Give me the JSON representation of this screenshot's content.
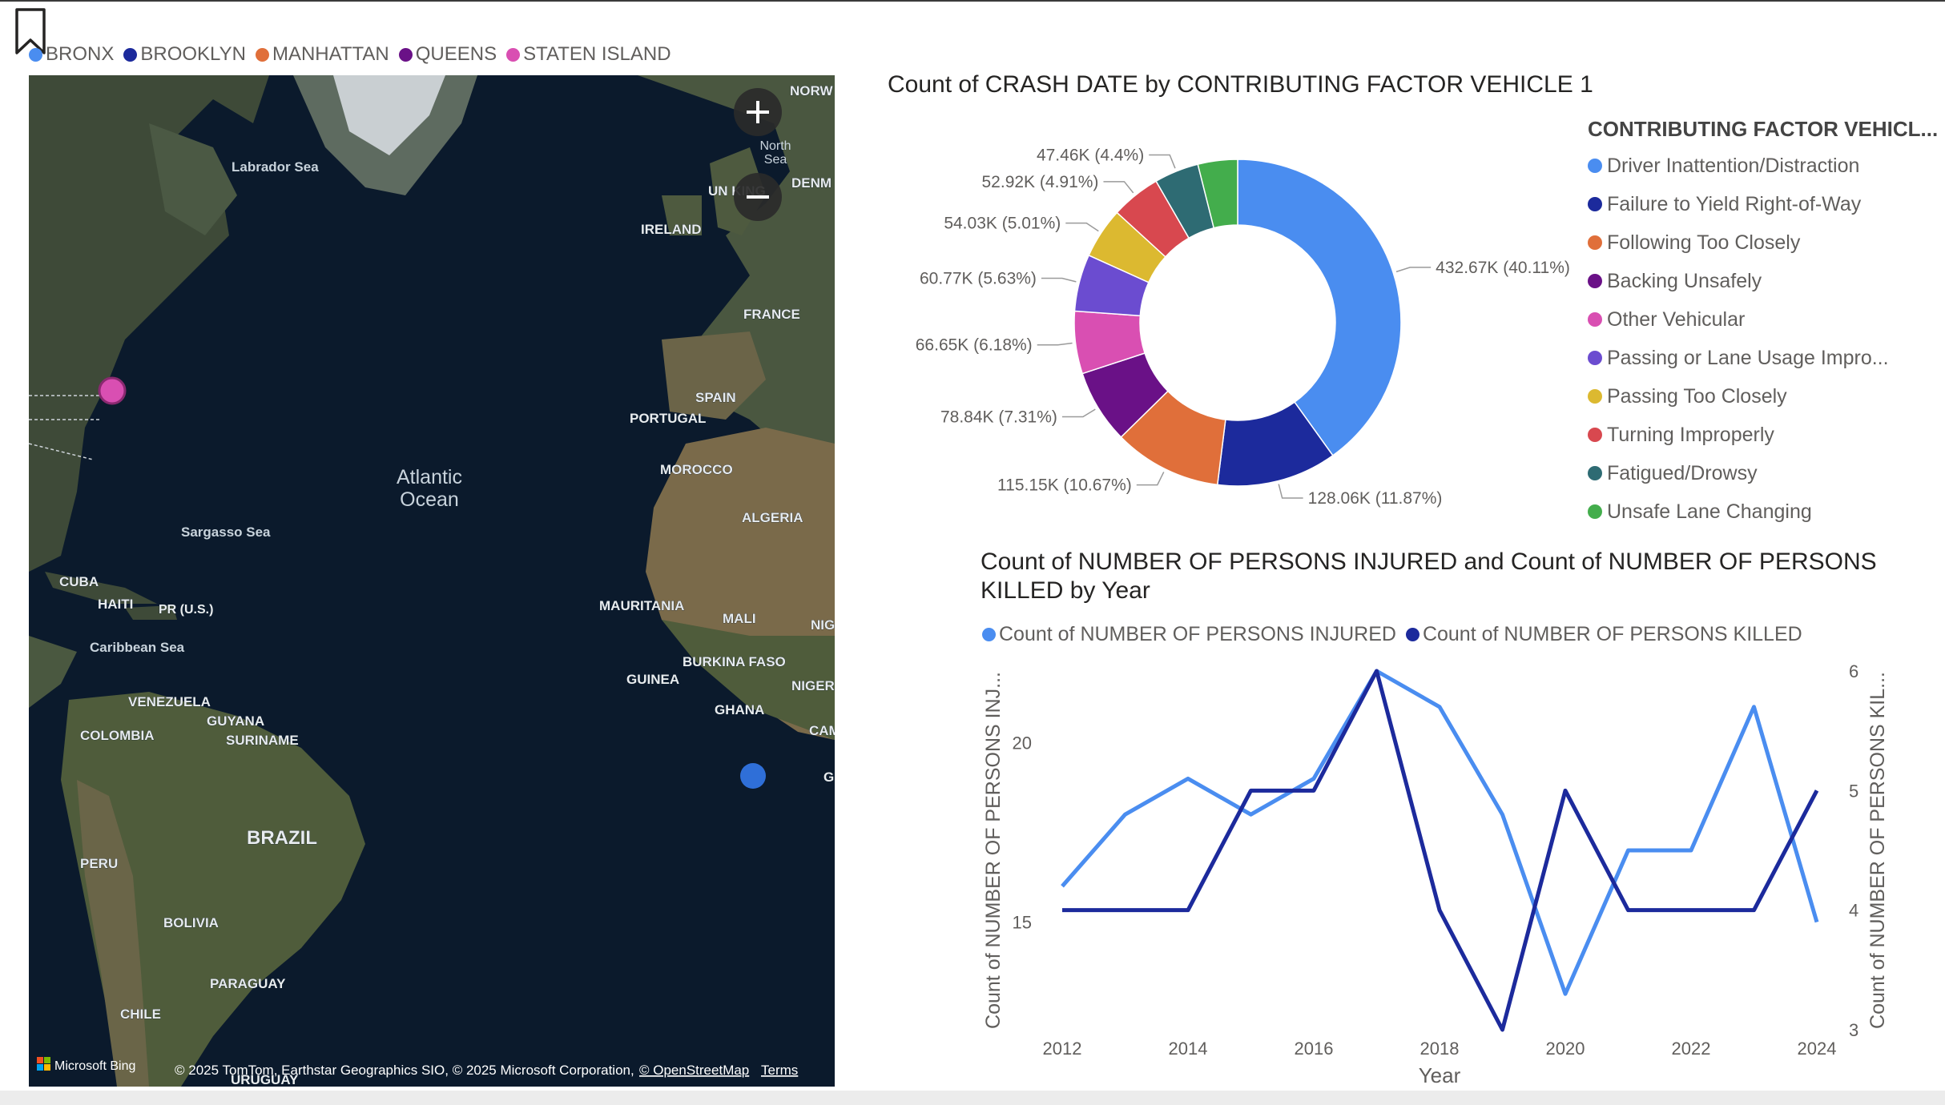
{
  "map_legend": [
    {
      "label": "BRONX",
      "color": "#4a8df0"
    },
    {
      "label": "BROOKLYN",
      "color": "#1c2a9c"
    },
    {
      "label": "MANHATTAN",
      "color": "#e06f3a"
    },
    {
      "label": "QUEENS",
      "color": "#6a1187"
    },
    {
      "label": "STATEN ISLAND",
      "color": "#d94fb2"
    }
  ],
  "map": {
    "labels": {
      "north_sea": "North Sea",
      "norway": "NORW",
      "denmark": "DENM",
      "uk": "UN KING",
      "ireland": "IRELAND",
      "france": "FRANCE",
      "spain": "SPAIN",
      "portugal": "PORTUGAL",
      "morocco": "MOROCCO",
      "algeria": "ALGERIA",
      "mauritania": "MAURITANIA",
      "mali": "MALI",
      "burkina": "BURKINA FASO",
      "niger": "NIGER",
      "nig": "NIG",
      "guinea": "GUINEA",
      "ghana": "GHANA",
      "cam": "CAM",
      "g": "G",
      "labrador": "Labrador Sea",
      "atlantic": "Atlantic Ocean",
      "sargasso": "Sargasso Sea",
      "cuba": "CUBA",
      "haiti": "HAITI",
      "pr": "PR (U.S.)",
      "caribbean": "Caribbean Sea",
      "venezuela": "VENEZUELA",
      "guyana": "GUYANA",
      "suriname": "SURINAME",
      "colombia": "COLOMBIA",
      "brazil": "BRAZIL",
      "peru": "PERU",
      "bolivia": "BOLIVIA",
      "paraguay": "PARAGUAY",
      "chile": "CHILE",
      "uruguay": "URUGUAY"
    },
    "zoom_in_icon": "plus-icon",
    "zoom_out_icon": "minus-icon",
    "provider": "Microsoft Bing",
    "attribution": "© 2025 TomTom, Earthstar Geographics SIO, © 2025 Microsoft Corporation,",
    "osm_link": "© OpenStreetMap",
    "terms_link": "Terms",
    "colors": {
      "ocean": "#0b1a2c",
      "land": "#3e4a38"
    }
  },
  "donut": {
    "title": "Count of CRASH DATE by CONTRIBUTING FACTOR VEHICLE 1",
    "legend_title": "CONTRIBUTING FACTOR VEHICL...",
    "chart_data": {
      "type": "pie",
      "subtype": "donut",
      "slices": [
        {
          "name": "Driver Inattention/Distraction",
          "value": 432.67,
          "label": "432.67K (40.11%)",
          "color": "#4a8df0"
        },
        {
          "name": "Failure to Yield Right-of-Way",
          "value": 128.06,
          "label": "128.06K (11.87%)",
          "color": "#1c2a9c"
        },
        {
          "name": "Following Too Closely",
          "value": 115.15,
          "label": "115.15K (10.67%)",
          "color": "#e06f3a"
        },
        {
          "name": "Backing Unsafely",
          "value": 78.84,
          "label": "78.84K (7.31%)",
          "color": "#6a1187"
        },
        {
          "name": "Other Vehicular",
          "value": 66.65,
          "label": "66.65K (6.18%)",
          "color": "#d94fb2"
        },
        {
          "name": "Passing or Lane Usage Impro...",
          "value": 60.77,
          "label": "60.77K (5.63%)",
          "color": "#6b4cd0"
        },
        {
          "name": "Passing Too Closely",
          "value": 54.03,
          "label": "54.03K (5.01%)",
          "color": "#dcb930"
        },
        {
          "name": "Turning Improperly",
          "value": 52.92,
          "label": "52.92K (4.91%)",
          "color": "#d8484f"
        },
        {
          "name": "Fatigued/Drowsy",
          "value": 47.46,
          "label": "47.46K (4.4%)",
          "color": "#2e6b73"
        },
        {
          "name": "Unsafe Lane Changing",
          "value": 42.3,
          "label": "",
          "color": "#43ad4c"
        }
      ]
    }
  },
  "line": {
    "title_line1": "Count of NUMBER OF PERSONS INJURED and Count of NUMBER OF PERSONS",
    "title_line2": "KILLED by Year",
    "chart_data": {
      "type": "line",
      "xlabel": "Year",
      "ylabel_left": "Count of NUMBER OF PERSONS INJ...",
      "ylabel_right": "Count of NUMBER OF PERSONS KIL...",
      "x": [
        2012,
        2013,
        2014,
        2015,
        2016,
        2017,
        2018,
        2019,
        2020,
        2021,
        2022,
        2023,
        2024
      ],
      "x_ticks": [
        "2012",
        "2014",
        "2016",
        "2018",
        "2020",
        "2022",
        "2024"
      ],
      "y_left_range": [
        12,
        22
      ],
      "y_left_ticks": [
        "15",
        "20"
      ],
      "y_right_range": [
        3,
        6
      ],
      "y_right_ticks": [
        "3",
        "4",
        "5",
        "6"
      ],
      "series": [
        {
          "name": "Count of NUMBER OF PERSONS INJURED",
          "axis": "left",
          "color": "#4a8df0",
          "values": [
            16,
            18,
            19,
            18,
            19,
            22,
            21,
            18,
            13,
            17,
            17,
            21,
            15
          ]
        },
        {
          "name": "Count of NUMBER OF PERSONS KILLED",
          "axis": "right",
          "color": "#1c2a9c",
          "values": [
            4,
            4,
            4,
            5,
            5,
            6,
            4,
            3,
            5,
            4,
            4,
            4,
            5
          ]
        }
      ]
    }
  }
}
